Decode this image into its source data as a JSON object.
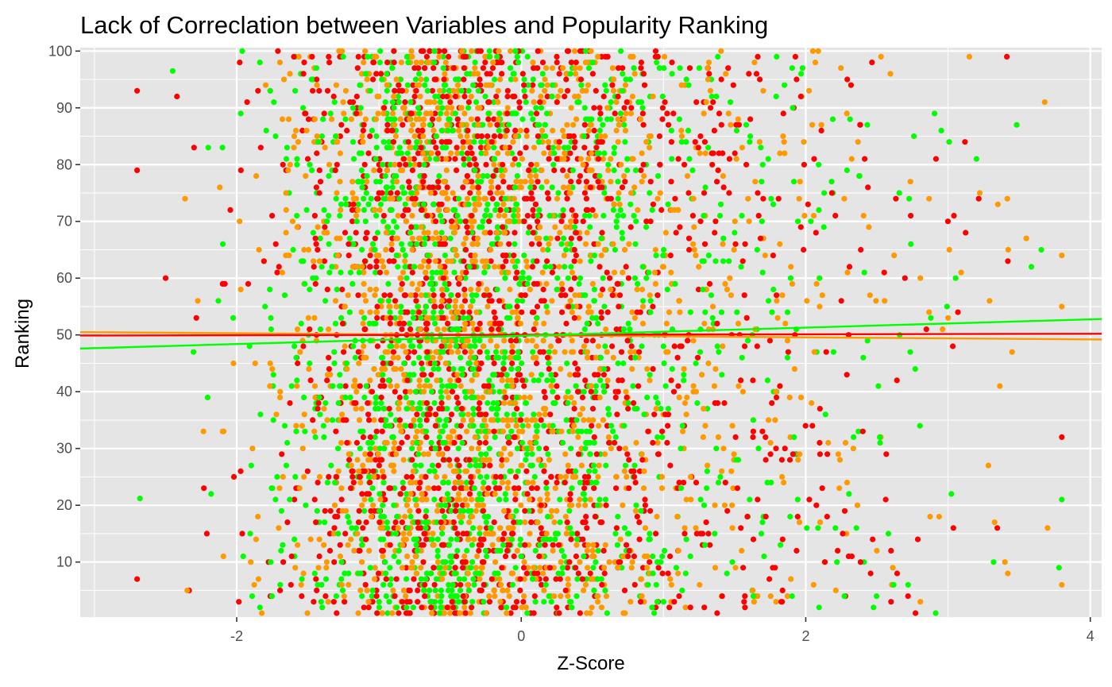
{
  "chart_data": {
    "type": "scatter",
    "title": "Lack of Correclation between Variables and Popularity Ranking",
    "xlabel": "Z-Score",
    "ylabel": "Ranking",
    "xlim": [
      -3.1,
      4.08
    ],
    "ylim": [
      0.3,
      100.6
    ],
    "x_ticks": [
      -2,
      0,
      2,
      4
    ],
    "x_tick_labels": [
      "-2",
      "0",
      "2",
      "4"
    ],
    "y_ticks": [
      10,
      20,
      30,
      40,
      50,
      60,
      70,
      80,
      90,
      100
    ],
    "y_tick_labels": [
      "10",
      "20",
      "30",
      "40",
      "50",
      "60",
      "70",
      "80",
      "90",
      "100"
    ],
    "grid": true,
    "legend": "none",
    "panel_background": "#e5e5e5",
    "grid_color": "#ffffff",
    "series_colors": [
      "#ff0000",
      "#00ff00",
      "#ff9900"
    ],
    "points_per_series": 1700,
    "ranking_range": [
      1,
      100
    ],
    "zscore_range": [
      -2.7,
      3.8
    ],
    "trend_lines": [
      {
        "color": "#ff9900",
        "y_at_xmin": 50.5,
        "y_at_xmax": 49.2
      },
      {
        "color": "#ff0000",
        "y_at_xmin": 49.9,
        "y_at_xmax": 50.2
      },
      {
        "color": "#00ff00",
        "y_at_xmin": 47.6,
        "y_at_xmax": 52.8
      }
    ],
    "notable_points": [
      {
        "x": -2.7,
        "y": 79,
        "color": "#ff0000"
      },
      {
        "x": -2.5,
        "y": 60,
        "color": "#ff0000"
      },
      {
        "x": -2.42,
        "y": 92,
        "color": "#ff0000"
      },
      {
        "x": -2.3,
        "y": 83,
        "color": "#ff0000"
      },
      {
        "x": -2.45,
        "y": 96.5,
        "color": "#00ff00"
      },
      {
        "x": -2.68,
        "y": 21.2,
        "color": "#00ff00"
      },
      {
        "x": -2.2,
        "y": 83,
        "color": "#00ff00"
      },
      {
        "x": -2.1,
        "y": 83,
        "color": "#00ff00"
      },
      {
        "x": 3.55,
        "y": 67,
        "color": "#ff9900"
      },
      {
        "x": 3.45,
        "y": 47,
        "color": "#ff9900"
      },
      {
        "x": 3.7,
        "y": 16,
        "color": "#ff9900"
      },
      {
        "x": 3.8,
        "y": 6,
        "color": "#ff9900"
      },
      {
        "x": 3.4,
        "y": 10,
        "color": "#ff9900"
      },
      {
        "x": 3.42,
        "y": 8,
        "color": "#ff9900"
      },
      {
        "x": 3.35,
        "y": 73,
        "color": "#ff9900"
      },
      {
        "x": 3.2,
        "y": 81,
        "color": "#00ff00"
      },
      {
        "x": 3.15,
        "y": 99,
        "color": "#ff9900"
      }
    ]
  }
}
